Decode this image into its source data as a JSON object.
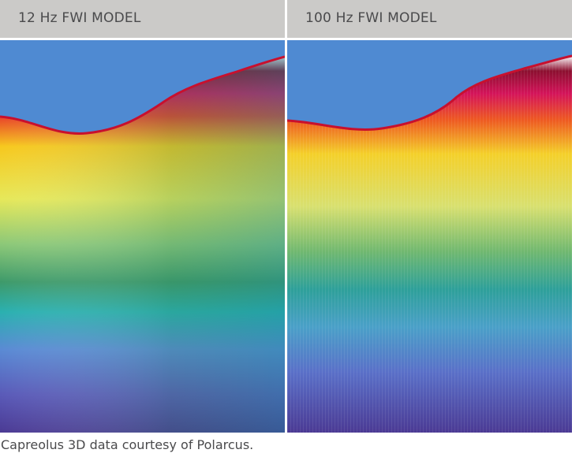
{
  "panels": [
    {
      "title": "12 Hz FWI MODEL"
    },
    {
      "title": "100 Hz FWI MODEL"
    }
  ],
  "caption": "Capreolus 3D data courtesy of Polarcus.",
  "colors": {
    "header_bg": "#cbcac8",
    "water": "#4f8ad2",
    "seabed": "#c8102e",
    "deep": "#4b3a94"
  }
}
